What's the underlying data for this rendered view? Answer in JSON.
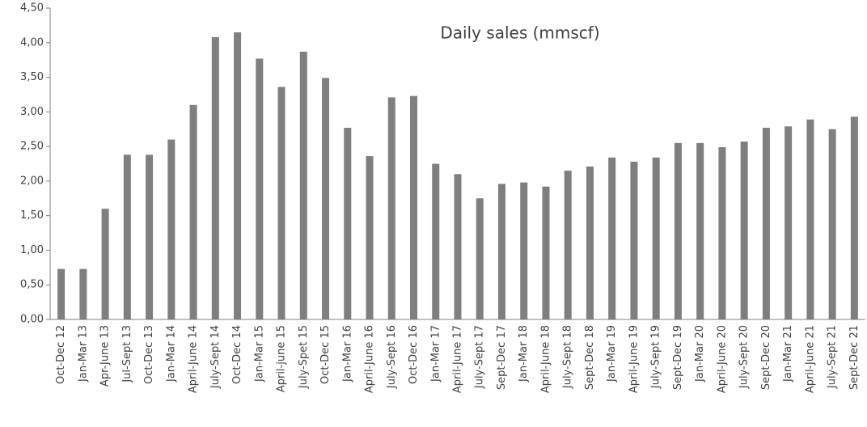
{
  "chart_data": {
    "type": "bar",
    "title": "Daily sales (mmscf)",
    "categories": [
      "Oct-Dec 12",
      "Jan-Mar 13",
      "Apr-June 13",
      "Jul-Sept 13",
      "Oct-Dec 13",
      "Jan-Mar 14",
      "April-June 14",
      "July-Sept 14",
      "Oct-Dec 14",
      "Jan-Mar 15",
      "April-june 15",
      "July-Spet 15",
      "Oct-Dec 15",
      "Jan-Mar 16",
      "April-June 16",
      "July-Sept 16",
      "Oct-Dec 16",
      "Jan-Mar 17",
      "April-June 17",
      "July-Sept 17",
      "Sept-Dec 17",
      "Jan-Mar 18",
      "April-June 18",
      "July-Sept 18",
      "Sept-Dec 18",
      "Jan-Mar 19",
      "April-June 19",
      "July-Sept 19",
      "Sept-Dec 19",
      "Jan-Mar 20",
      "April-June 20",
      "July-Sept 20",
      "Sept-Dec 20",
      "Jan-Mar 21",
      "April-June 21",
      "July-Sept 21",
      "Sept-Dec 21"
    ],
    "values": [
      0.73,
      0.73,
      1.6,
      2.38,
      2.38,
      2.6,
      3.1,
      4.08,
      4.15,
      3.77,
      3.36,
      3.87,
      3.49,
      2.77,
      2.36,
      3.21,
      3.23,
      2.25,
      2.1,
      1.75,
      1.96,
      1.98,
      1.92,
      2.15,
      2.21,
      2.34,
      2.28,
      2.34,
      2.55,
      2.55,
      2.49,
      2.57,
      2.77,
      2.79,
      2.89,
      2.75,
      2.93
    ],
    "color": "#7f7f7f",
    "ylim": [
      0,
      4.5
    ],
    "yticks": [
      {
        "value": 0,
        "label": "0,00"
      },
      {
        "value": 0.5,
        "label": "0,50"
      },
      {
        "value": 1,
        "label": "1,00"
      },
      {
        "value": 1.5,
        "label": "1,50"
      },
      {
        "value": 2,
        "label": "2,00"
      },
      {
        "value": 2.5,
        "label": "2,50"
      },
      {
        "value": 3,
        "label": "3,00"
      },
      {
        "value": 3.5,
        "label": "3,50"
      },
      {
        "value": 4,
        "label": "4,00"
      },
      {
        "value": 4.5,
        "label": "4,50"
      }
    ],
    "grid": false
  }
}
